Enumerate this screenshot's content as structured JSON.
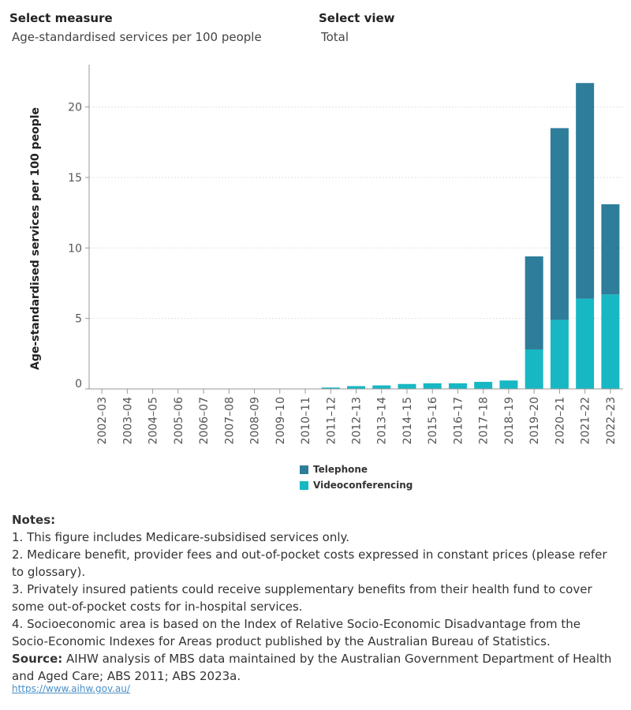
{
  "filters": {
    "measure": {
      "label": "Select measure",
      "value": "Age-standardised services per 100 people"
    },
    "view": {
      "label": "Select view",
      "value": "Total"
    }
  },
  "chart_data": {
    "type": "bar",
    "stacked": true,
    "ylabel": "Age-standardised services per 100 people",
    "ylim": [
      0,
      23
    ],
    "yticks": [
      0,
      5,
      10,
      15,
      20
    ],
    "grid": true,
    "legend_position": "bottom",
    "categories": [
      "2002–03",
      "2003–04",
      "2004–05",
      "2005–06",
      "2006–07",
      "2007–08",
      "2008–09",
      "2009–10",
      "2010–11",
      "2011–12",
      "2012–13",
      "2013–14",
      "2014–15",
      "2015–16",
      "2016–17",
      "2017–18",
      "2018–19",
      "2019–20",
      "2020–21",
      "2021–22",
      "2022–23"
    ],
    "series": [
      {
        "name": "Videoconferencing",
        "color": "#17b8c4",
        "values": [
          0,
          0,
          0,
          0,
          0,
          0,
          0,
          0,
          0,
          0.1,
          0.2,
          0.25,
          0.35,
          0.4,
          0.4,
          0.5,
          0.6,
          2.8,
          4.9,
          6.4,
          6.7
        ]
      },
      {
        "name": "Telephone",
        "color": "#2e7d9a",
        "values": [
          0,
          0,
          0,
          0,
          0,
          0,
          0,
          0,
          0,
          0,
          0,
          0,
          0,
          0,
          0,
          0,
          0,
          6.6,
          13.6,
          15.3,
          6.4
        ]
      }
    ]
  },
  "notes": {
    "heading": "Notes:",
    "items": [
      "1. This figure includes Medicare-subsidised services only.",
      "2. Medicare benefit, provider fees and out-of-pocket costs expressed in constant prices (please refer to glossary).",
      "3. Privately insured patients could receive supplementary benefits from their health fund to cover some out-of-pocket costs for in-hospital services.",
      "4. Socioeconomic area is based on the Index of Relative Socio-Economic Disadvantage from the Socio-Economic Indexes for Areas product published by the Australian Bureau of Statistics."
    ],
    "source_label": "Source:",
    "source_text": " AIHW analysis of MBS data maintained by the Australian Government Department of Health and Aged Care; ABS 2011; ABS 2023a."
  },
  "link": "https://www.aihw.gov.au/"
}
